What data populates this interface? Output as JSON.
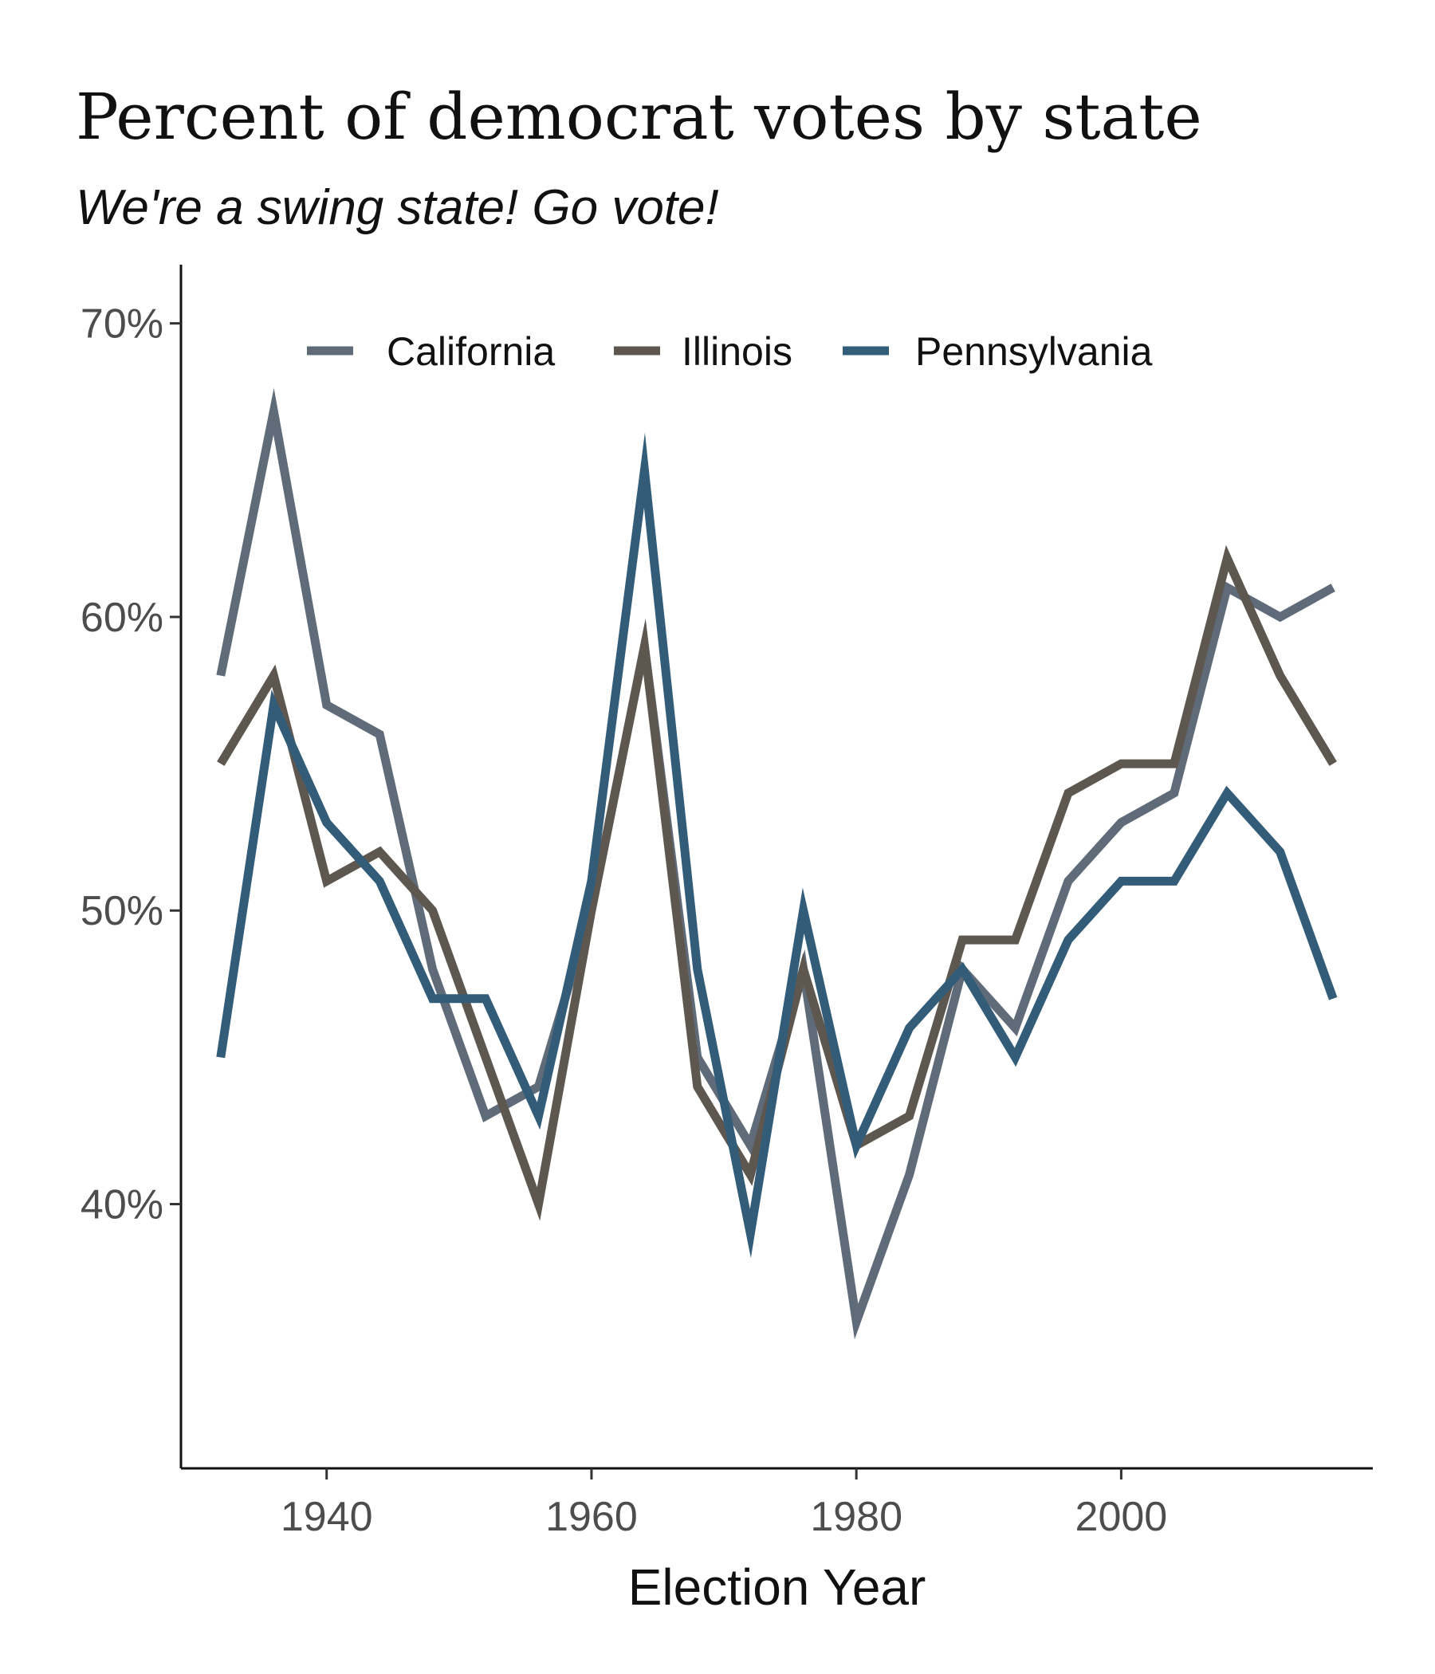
{
  "chart_data": {
    "type": "line",
    "title": "Percent of democrat votes by state",
    "subtitle": "We're a swing state! Go vote!",
    "xlabel": "Election Year",
    "ylabel": "",
    "x": [
      1932,
      1936,
      1940,
      1944,
      1948,
      1952,
      1956,
      1960,
      1964,
      1968,
      1972,
      1976,
      1980,
      1984,
      1988,
      1992,
      1996,
      2000,
      2004,
      2008,
      2012,
      2016
    ],
    "xlim": [
      1929,
      2019
    ],
    "ylim": [
      31,
      72
    ],
    "xticks": [
      1940,
      1960,
      1980,
      2000
    ],
    "xtick_labels": [
      "1940",
      "1960",
      "1980",
      "2000"
    ],
    "yticks": [
      40,
      50,
      60,
      70
    ],
    "ytick_labels": [
      "40%",
      "50%",
      "60%",
      "70%"
    ],
    "grid": false,
    "legend_position": "top",
    "series": [
      {
        "name": "California",
        "color": "#5f6b78",
        "values": [
          58,
          67,
          57,
          56,
          48,
          43,
          44,
          50,
          59,
          45,
          42,
          48,
          36,
          41,
          48,
          46,
          51,
          53,
          54,
          61,
          60,
          61
        ]
      },
      {
        "name": "Illinois",
        "color": "#5e5750",
        "values": [
          55,
          58,
          51,
          52,
          50,
          45,
          40,
          50,
          59,
          44,
          41,
          48,
          42,
          43,
          49,
          49,
          54,
          55,
          55,
          62,
          58,
          55
        ]
      },
      {
        "name": "Pennsylvania",
        "color": "#335c78",
        "values": [
          45,
          57,
          53,
          51,
          47,
          47,
          43,
          51,
          65,
          48,
          39,
          50,
          42,
          46,
          48,
          45,
          49,
          51,
          51,
          54,
          52,
          47
        ]
      }
    ]
  }
}
